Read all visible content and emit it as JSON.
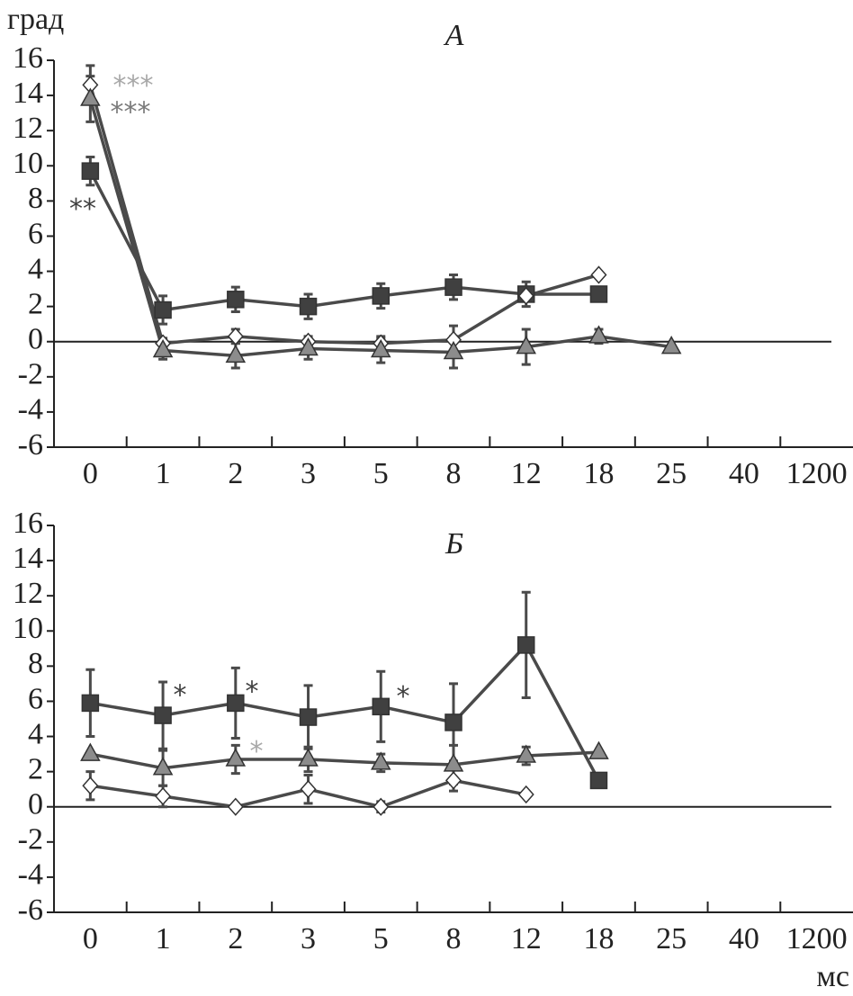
{
  "chart_data": [
    {
      "type": "line",
      "title": "А",
      "y_label": "град",
      "categories": [
        "0",
        "1",
        "2",
        "3",
        "5",
        "8",
        "12",
        "18",
        "25",
        "40",
        "1200"
      ],
      "ylim": [
        -6,
        16
      ],
      "yticks": [
        -6,
        -4,
        -2,
        0,
        2,
        4,
        6,
        8,
        10,
        12,
        14,
        16
      ],
      "series": [
        {
          "marker": "square",
          "color": "#404040",
          "values": [
            9.7,
            1.8,
            2.4,
            2.0,
            2.6,
            3.1,
            2.7,
            2.7,
            null,
            null,
            null
          ],
          "errors": [
            0.8,
            0.8,
            0.7,
            0.7,
            0.7,
            0.7,
            0.7,
            null,
            null,
            null,
            null
          ]
        },
        {
          "marker": "diamond",
          "color": "#ffffff",
          "values": [
            14.6,
            -0.1,
            0.3,
            0.0,
            -0.1,
            0.1,
            2.6,
            3.8,
            null,
            null,
            null
          ],
          "errors": [
            1.1,
            0.3,
            0.4,
            0.3,
            0.4,
            0.8,
            null,
            null,
            null,
            null,
            null
          ]
        },
        {
          "marker": "triangle",
          "color": "#8c8c8c",
          "values": [
            13.8,
            -0.5,
            -0.8,
            -0.4,
            -0.5,
            -0.6,
            -0.3,
            0.3,
            -0.3,
            null,
            null
          ],
          "errors": [
            1.3,
            0.5,
            0.7,
            0.6,
            0.7,
            0.9,
            1.0,
            0.4,
            null,
            null,
            null
          ]
        }
      ],
      "annotations": [
        {
          "text": "***",
          "color": "#a8a8a8"
        },
        {
          "text": "***",
          "color": "#7a7a7a"
        },
        {
          "text": "**",
          "color": "#404040"
        }
      ]
    },
    {
      "type": "line",
      "title": "Б",
      "x_label": "мс",
      "categories": [
        "0",
        "1",
        "2",
        "3",
        "5",
        "8",
        "12",
        "18",
        "25",
        "40",
        "1200"
      ],
      "ylim": [
        -6,
        16
      ],
      "yticks": [
        -6,
        -4,
        -2,
        0,
        2,
        4,
        6,
        8,
        10,
        12,
        14,
        16
      ],
      "series": [
        {
          "marker": "square",
          "color": "#404040",
          "values": [
            5.9,
            5.2,
            5.9,
            5.1,
            5.7,
            4.8,
            9.2,
            1.5,
            null,
            null,
            null
          ],
          "errors": [
            1.9,
            1.9,
            2.0,
            1.8,
            2.0,
            2.2,
            3.0,
            null,
            null,
            null,
            null
          ]
        },
        {
          "marker": "triangle",
          "color": "#8c8c8c",
          "values": [
            3.0,
            2.2,
            2.7,
            2.7,
            2.5,
            2.4,
            2.9,
            3.1,
            null,
            null,
            null
          ],
          "errors": [
            null,
            1.0,
            0.8,
            0.7,
            0.5,
            1.1,
            0.5,
            null,
            null,
            null,
            null
          ]
        },
        {
          "marker": "diamond",
          "color": "#ffffff",
          "values": [
            1.2,
            0.6,
            0.0,
            1.0,
            0.0,
            1.5,
            0.7,
            null,
            null,
            null,
            null
          ],
          "errors": [
            0.8,
            0.6,
            null,
            0.8,
            0.3,
            0.6,
            null,
            null,
            null,
            null,
            null
          ]
        }
      ],
      "annotations": [
        {
          "text": "*",
          "color": "#404040"
        },
        {
          "text": "*",
          "color": "#404040"
        },
        {
          "text": "*",
          "color": "#404040"
        },
        {
          "text": "*",
          "color": "#a8a8a8"
        }
      ]
    }
  ]
}
